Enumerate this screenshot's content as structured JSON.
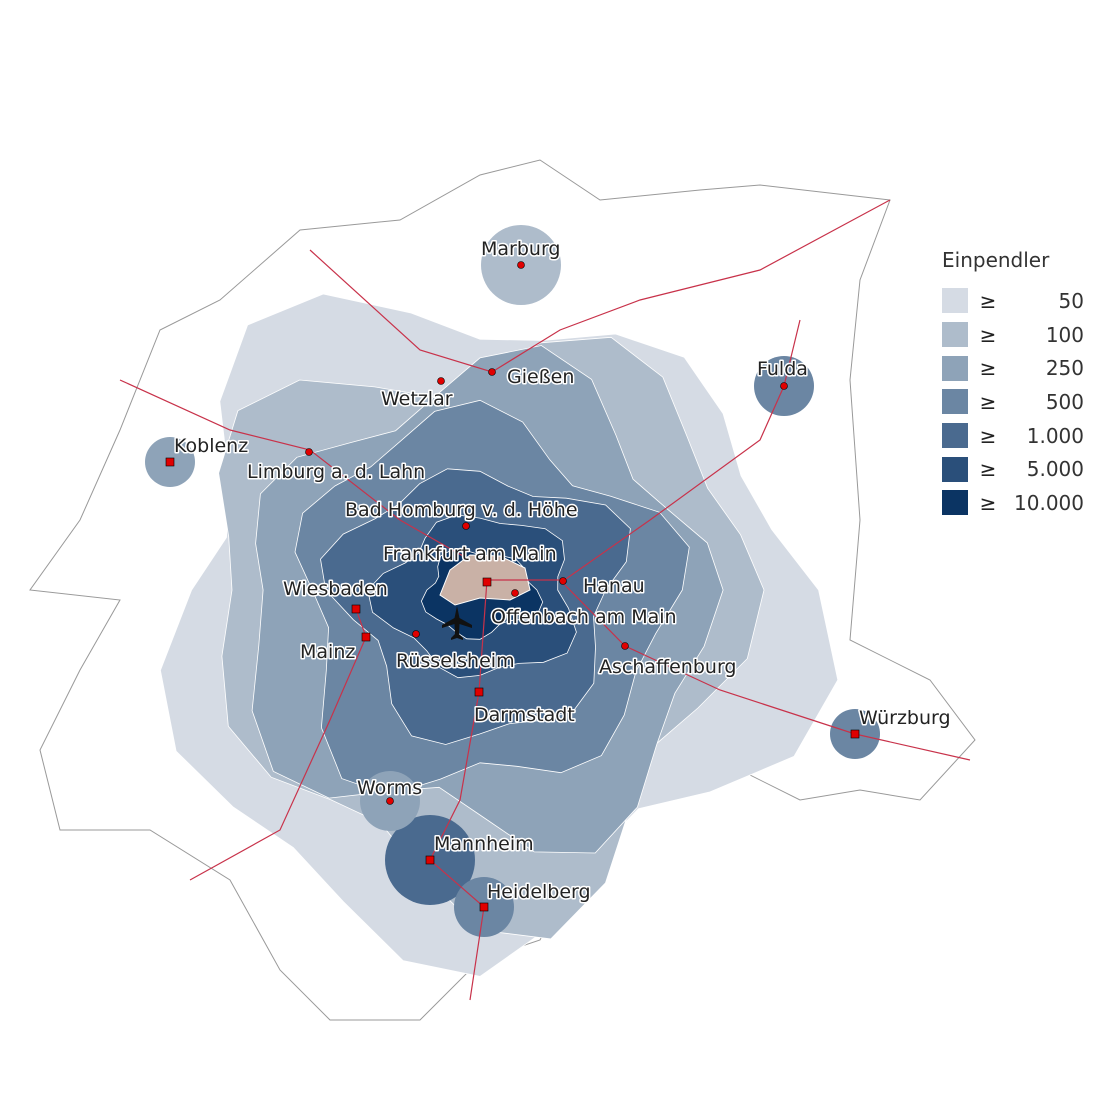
{
  "legend": {
    "title": "Einpendler",
    "symbol": "≥",
    "classes": [
      {
        "label": "50",
        "color": "#d5dbe4"
      },
      {
        "label": "100",
        "color": "#aebccb"
      },
      {
        "label": "250",
        "color": "#8ea3b8"
      },
      {
        "label": "500",
        "color": "#6b86a3"
      },
      {
        "label": "1.000",
        "color": "#4a6a8f"
      },
      {
        "label": "5.000",
        "color": "#2a4f7a"
      },
      {
        "label": "10.000",
        "color": "#0b3463"
      }
    ]
  },
  "colors": {
    "destination": "#c9b1a6",
    "roads": "#c8324a",
    "rail": "#888888",
    "city_marker": "#e00000"
  },
  "cities": [
    "Marburg",
    "Gießen",
    "Wetzlar",
    "Fulda",
    "Koblenz",
    "Limburg a. d. Lahn",
    "Bad Homburg v. d. Höhe",
    "Frankfurt am Main",
    "Hanau",
    "Wiesbaden",
    "Offenbach am Main",
    "Mainz",
    "Rüsselsheim",
    "Aschaffenburg",
    "Darmstadt",
    "Würzburg",
    "Worms",
    "Mannheim",
    "Heidelberg"
  ],
  "icons": {
    "airport": "airplane-icon"
  }
}
